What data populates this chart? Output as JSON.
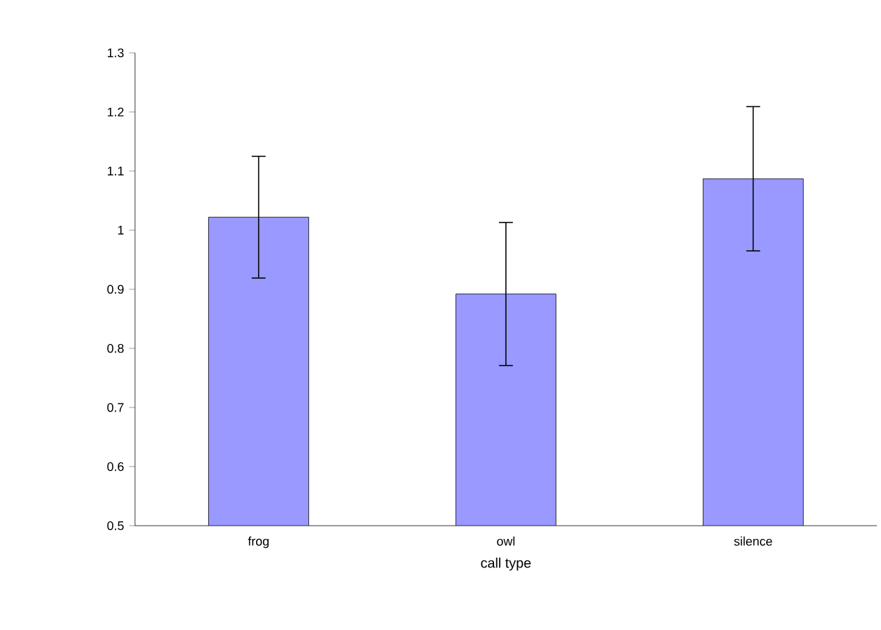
{
  "chart_data": {
    "type": "bar",
    "xlabel": "call type",
    "categories": [
      "frog",
      "owl",
      "silence"
    ],
    "values": [
      1.022,
      0.892,
      1.087
    ],
    "errors": [
      0.103,
      0.121,
      0.122
    ],
    "color": "#9999ff",
    "ylim": [
      0.5,
      1.3
    ],
    "yticks": [
      {
        "value": 0.5,
        "label": "0.5"
      },
      {
        "value": 0.6,
        "label": "0.6"
      },
      {
        "value": 0.7,
        "label": "0.7"
      },
      {
        "value": 0.8,
        "label": "0.8"
      },
      {
        "value": 0.9,
        "label": "0.9"
      },
      {
        "value": 1,
        "label": "1"
      },
      {
        "value": 1.1,
        "label": "1.1"
      },
      {
        "value": 1.2,
        "label": "1.2"
      },
      {
        "value": 1.3,
        "label": "1.3"
      }
    ]
  }
}
